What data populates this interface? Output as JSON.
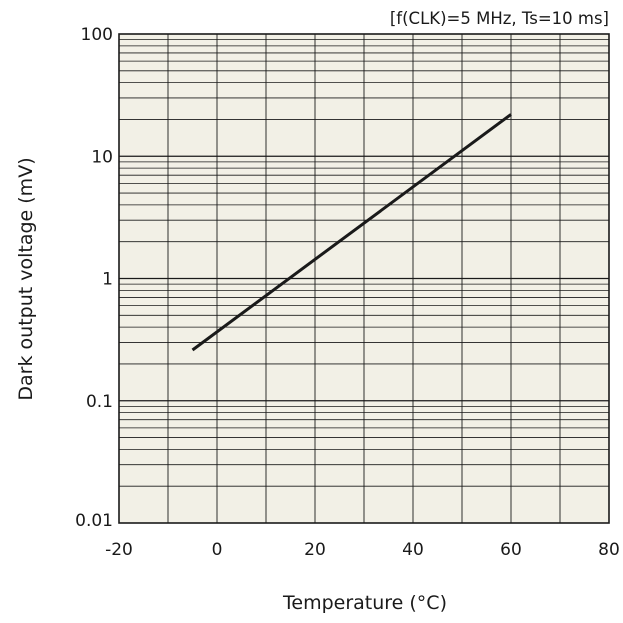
{
  "chart_data": {
    "type": "line",
    "annotation": "[f(CLK)=5 MHz, Ts=10 ms]",
    "xlabel": "Temperature (°C)",
    "ylabel": "Dark output voltage (mV)",
    "xlim": [
      -20,
      80
    ],
    "ylim": [
      0.01,
      100
    ],
    "yscale": "log",
    "grid": true,
    "x_ticks": [
      -20,
      0,
      20,
      40,
      60,
      80
    ],
    "x_tick_labels": [
      "-20",
      "0",
      "20",
      "40",
      "60",
      "80"
    ],
    "y_ticks": [
      0.01,
      0.1,
      1,
      10,
      100
    ],
    "y_tick_labels": [
      "0.01",
      "0.1",
      "1",
      "10",
      "100"
    ],
    "series": [
      {
        "x": [
          -5,
          60
        ],
        "y": [
          0.26,
          22
        ]
      }
    ],
    "colors": {
      "background": "#f2f0e6",
      "grid": "#1a1a1a",
      "line": "#1a1a1a"
    }
  }
}
